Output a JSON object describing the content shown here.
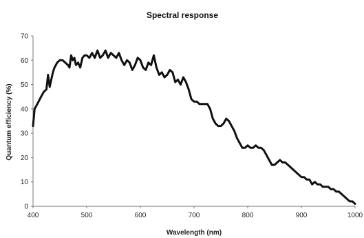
{
  "chart_data": {
    "type": "line",
    "title": "Spectral response",
    "xlabel": "Wavelength (nm)",
    "ylabel": "Quantum efficiency (%)",
    "xlim": [
      400,
      1000
    ],
    "ylim": [
      0,
      70
    ],
    "xticks": [
      400,
      500,
      600,
      700,
      800,
      900,
      1000
    ],
    "yticks": [
      0,
      10,
      20,
      30,
      40,
      50,
      60,
      70
    ],
    "grid": false,
    "legend": "none",
    "line_color": "#111111",
    "series": [
      {
        "x": [
          400,
          403,
          408,
          415,
          420,
          425,
          428,
          431,
          434,
          437,
          440,
          445,
          450,
          455,
          460,
          465,
          468,
          471,
          474,
          477,
          480,
          484,
          488,
          492,
          496,
          500,
          505,
          510,
          515,
          520,
          525,
          530,
          535,
          540,
          545,
          550,
          555,
          560,
          565,
          570,
          575,
          580,
          585,
          590,
          595,
          600,
          605,
          610,
          615,
          620,
          625,
          630,
          635,
          640,
          645,
          650,
          655,
          660,
          665,
          670,
          675,
          680,
          685,
          690,
          695,
          700,
          705,
          710,
          715,
          720,
          725,
          730,
          735,
          740,
          745,
          750,
          755,
          760,
          765,
          770,
          775,
          780,
          785,
          790,
          795,
          800,
          805,
          810,
          815,
          820,
          825,
          830,
          835,
          840,
          845,
          850,
          855,
          860,
          865,
          870,
          875,
          880,
          885,
          890,
          895,
          900,
          905,
          910,
          915,
          920,
          925,
          930,
          935,
          940,
          945,
          950,
          955,
          960,
          965,
          970,
          975,
          980,
          985,
          990,
          995,
          1000
        ],
        "values": [
          33,
          40,
          42,
          45,
          47,
          48,
          54,
          49,
          52,
          55,
          57,
          59,
          60,
          60,
          59,
          58,
          57,
          62,
          60,
          61,
          58,
          59,
          57,
          61,
          62,
          62,
          61,
          63,
          61,
          64,
          61,
          62,
          64,
          61,
          63,
          62,
          61,
          63,
          60,
          58,
          60,
          59,
          56,
          58,
          61,
          60,
          57,
          56,
          59,
          58,
          62,
          57,
          54,
          55,
          53,
          54,
          56,
          55,
          51,
          52,
          50,
          53,
          51,
          48,
          44,
          43,
          43,
          42,
          42,
          42,
          42,
          40,
          36,
          34,
          33,
          33,
          34,
          36,
          35,
          33,
          31,
          28,
          26,
          24,
          24,
          25,
          24,
          24,
          25,
          24,
          24,
          23,
          21,
          19,
          17,
          17,
          18,
          19,
          18,
          18,
          17,
          16,
          15,
          14,
          13,
          12,
          12,
          11,
          11,
          9,
          10,
          9,
          9,
          8,
          8,
          8,
          7,
          7,
          6,
          6,
          5,
          4,
          3,
          2,
          2,
          1
        ]
      }
    ]
  }
}
